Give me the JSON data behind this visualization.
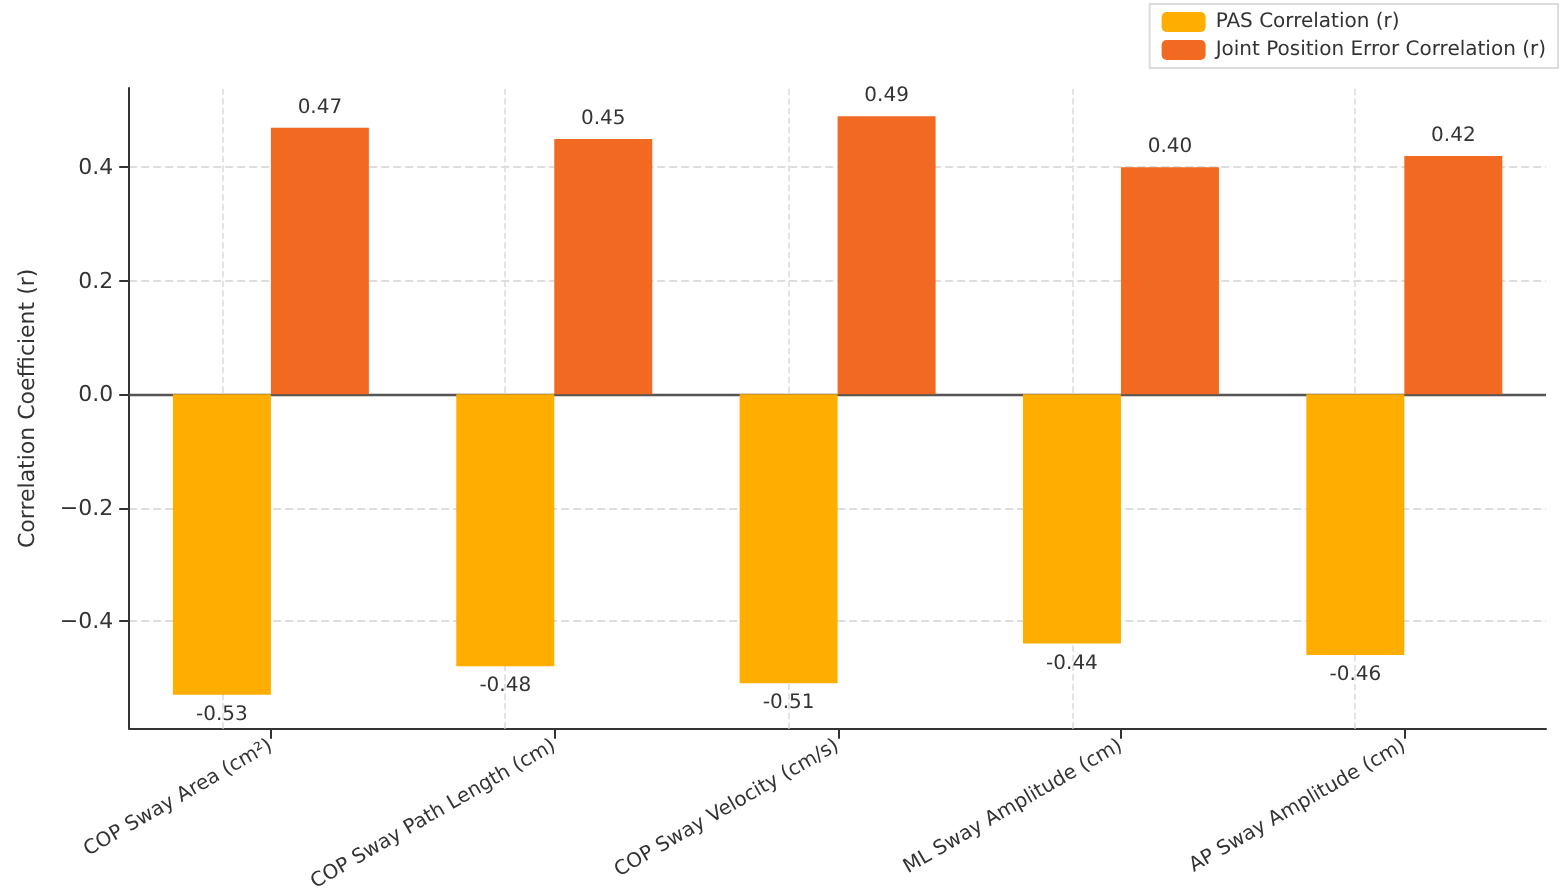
{
  "chart_data": {
    "type": "bar",
    "ylabel": "Correlation Coefficient (r)",
    "categories": [
      "COP Sway Area (cm²)",
      "COP Sway Path Length (cm)",
      "COP Sway Velocity (cm/s)",
      "ML Sway Amplitude (cm)",
      "AP Sway Amplitude (cm)"
    ],
    "series": [
      {
        "name": "PAS Correlation (r)",
        "color": "#ffae00",
        "values": [
          -0.53,
          -0.48,
          -0.51,
          -0.44,
          -0.46
        ],
        "value_labels": [
          "-0.53",
          "-0.48",
          "-0.51",
          "-0.44",
          "-0.46"
        ]
      },
      {
        "name": "Joint Position Error Correlation (r)",
        "color": "#f26a21",
        "values": [
          0.47,
          0.45,
          0.49,
          0.4,
          0.42
        ],
        "value_labels": [
          "0.47",
          "0.45",
          "0.49",
          "0.40",
          "0.42"
        ]
      }
    ],
    "ylim": [
      -0.59,
      0.54
    ],
    "yticks": [
      {
        "value": -0.4,
        "label": "−0.4"
      },
      {
        "value": -0.2,
        "label": "−0.2"
      },
      {
        "value": 0,
        "label": "0.0"
      },
      {
        "value": 0.2,
        "label": "0.2"
      },
      {
        "value": 0.4,
        "label": "0.4"
      }
    ],
    "ref_lines": [
      {
        "axis": "y",
        "value": 0,
        "color": "#555555"
      }
    ],
    "grid": true,
    "legend": "top right"
  }
}
